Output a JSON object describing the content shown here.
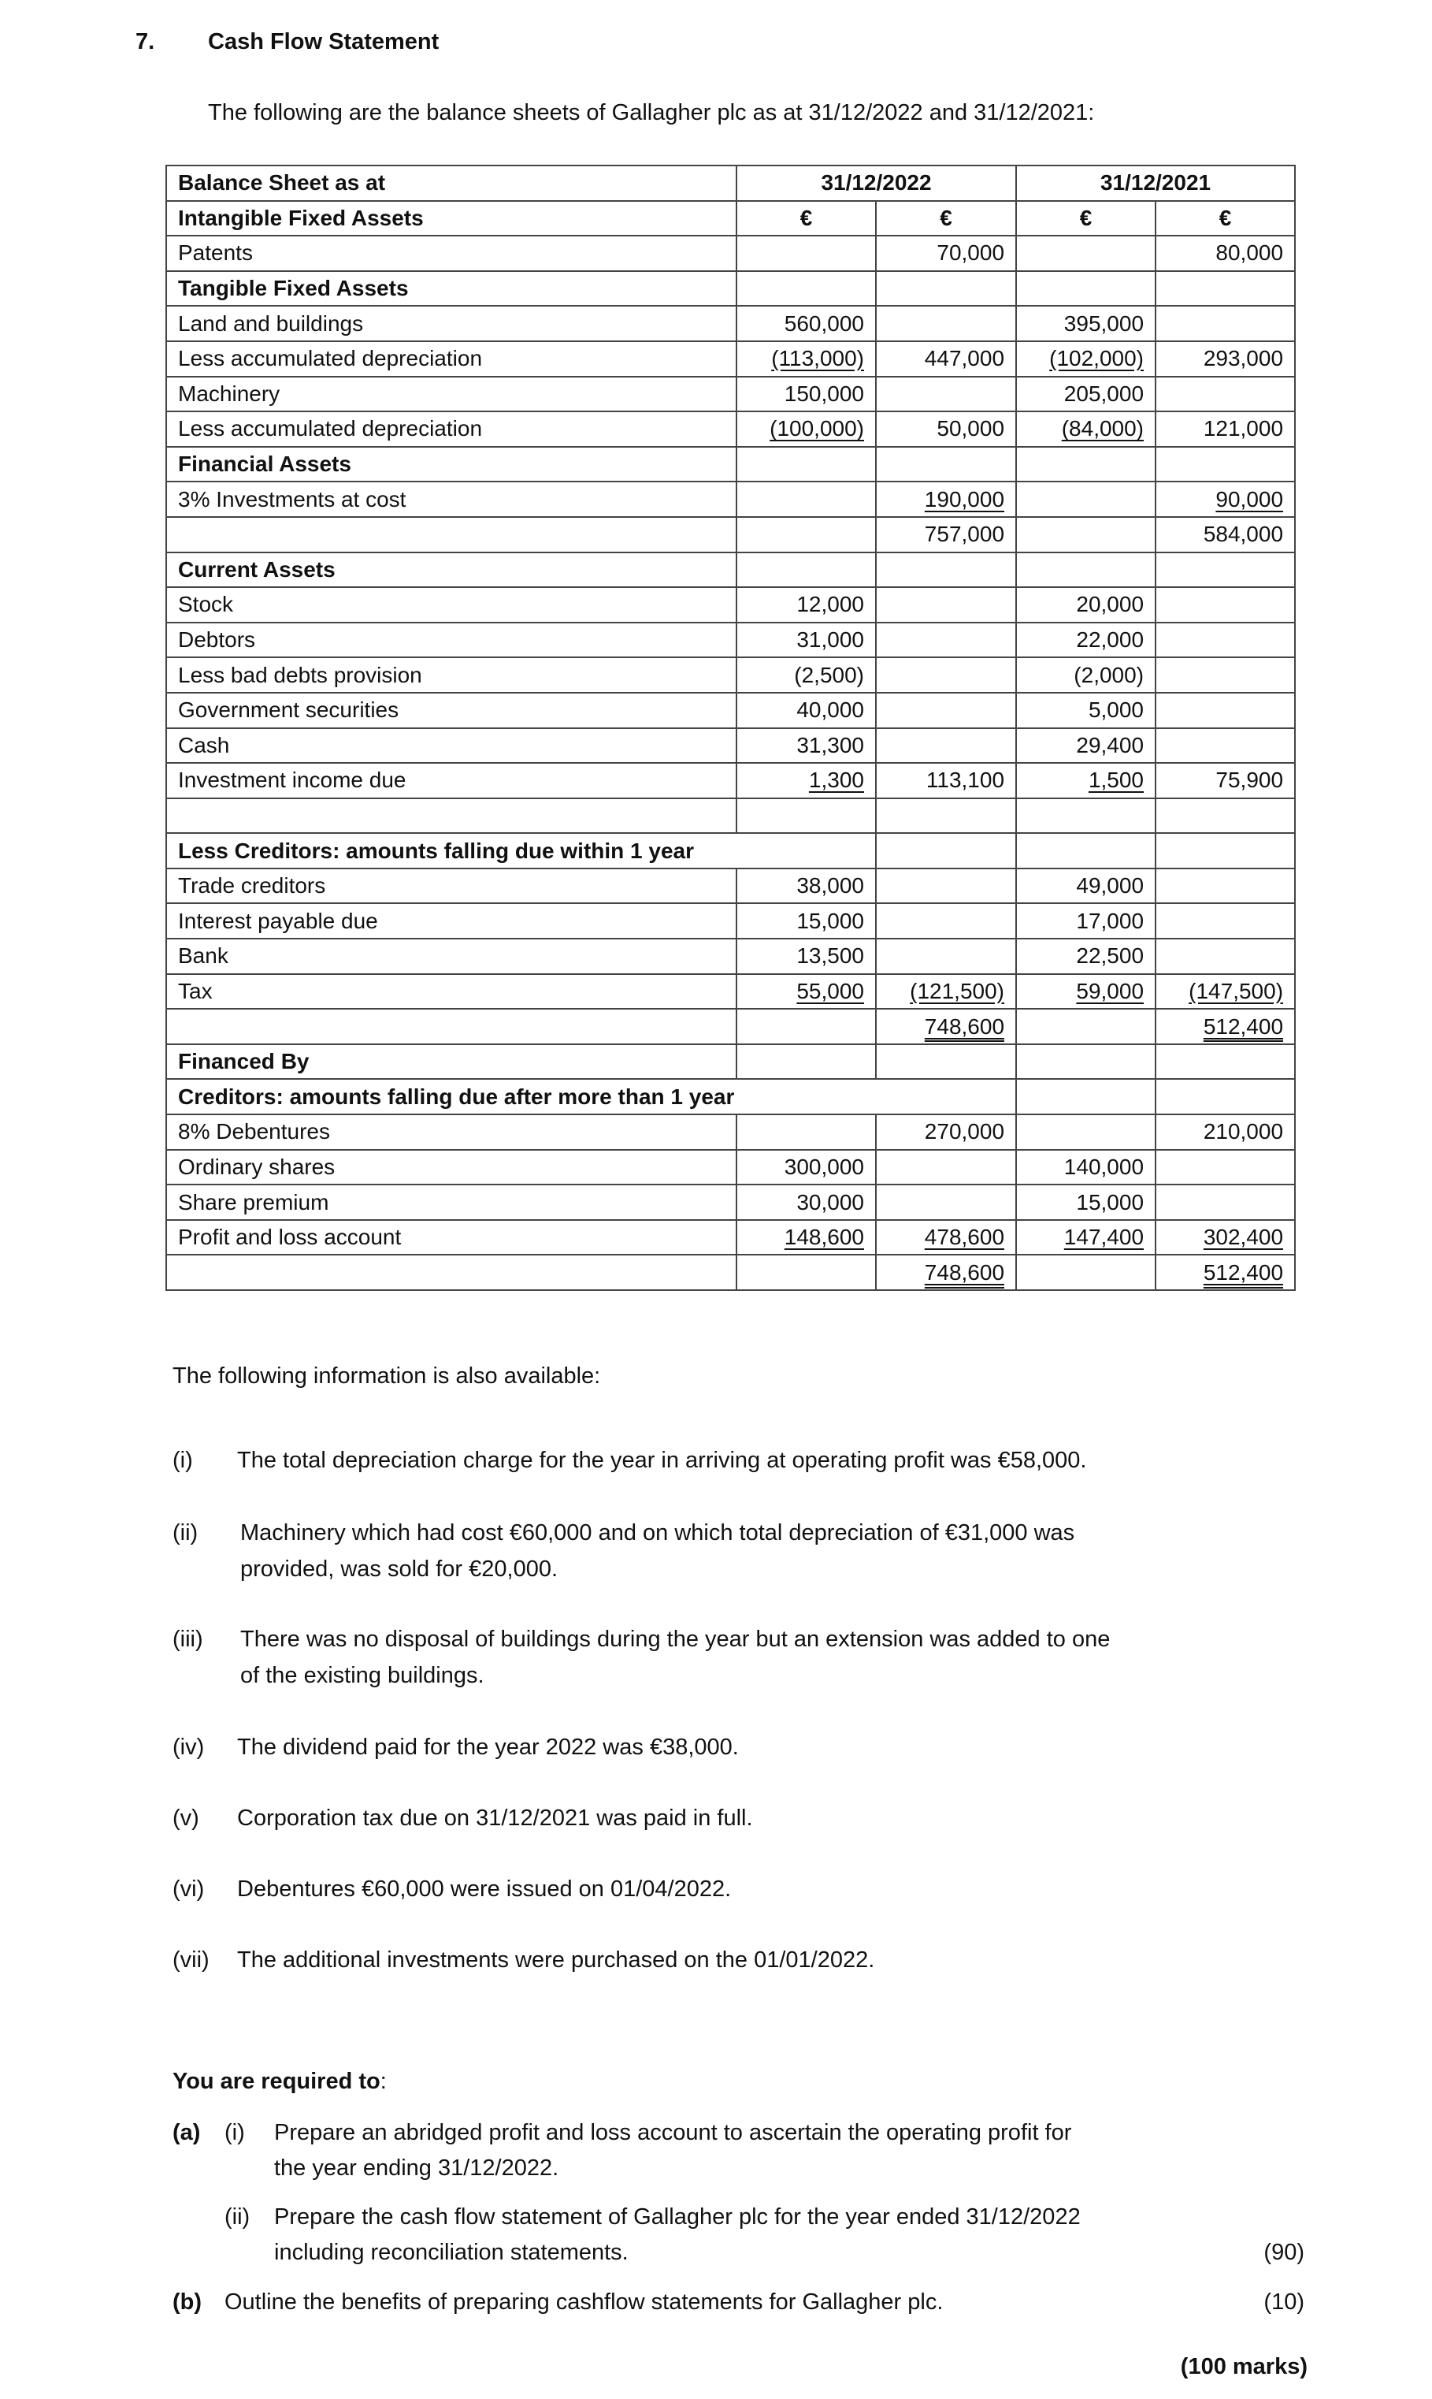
{
  "question": {
    "number": "7.",
    "title": "Cash Flow Statement",
    "intro": "The following are the balance sheets of Gallagher plc as at 31/12/2022 and 31/12/2021:"
  },
  "balance_sheet": {
    "rows": [
      {
        "kind": "header",
        "label": "Balance Sheet as at",
        "cells": [
          "31/12/2022",
          "31/12/2021"
        ]
      },
      {
        "kind": "currency",
        "label": "Intangible Fixed Assets",
        "cells": [
          "€",
          "€",
          "€",
          "€"
        ]
      },
      {
        "label": "Patents",
        "cells": [
          "",
          "70,000",
          "",
          "80,000"
        ]
      },
      {
        "kind": "section",
        "label": "Tangible Fixed Assets",
        "cells": [
          "",
          "",
          "",
          ""
        ]
      },
      {
        "label": "Land and buildings",
        "cells": [
          "560,000",
          "",
          "395,000",
          ""
        ]
      },
      {
        "label": "Less accumulated depreciation",
        "cells": [
          "(113,000)",
          "447,000",
          "(102,000)",
          "293,000"
        ],
        "underline": [
          "single",
          "",
          "single",
          ""
        ]
      },
      {
        "label": "Machinery",
        "cells": [
          "150,000",
          "",
          "205,000",
          ""
        ]
      },
      {
        "label": "Less accumulated depreciation",
        "cells": [
          "(100,000)",
          "50,000",
          "(84,000)",
          "121,000"
        ],
        "underline": [
          "single",
          "",
          "single",
          ""
        ]
      },
      {
        "kind": "section",
        "label": "Financial Assets",
        "cells": [
          "",
          "",
          "",
          ""
        ]
      },
      {
        "label": "3% Investments at cost",
        "cells": [
          "",
          "190,000",
          "",
          "90,000"
        ],
        "underline": [
          "",
          "single",
          "",
          "single"
        ]
      },
      {
        "label": "",
        "cells": [
          "",
          "757,000",
          "",
          "584,000"
        ]
      },
      {
        "kind": "section",
        "label": "Current Assets",
        "cells": [
          "",
          "",
          "",
          ""
        ]
      },
      {
        "label": "Stock",
        "cells": [
          "12,000",
          "",
          "20,000",
          ""
        ]
      },
      {
        "label": "Debtors",
        "cells": [
          "31,000",
          "",
          "22,000",
          ""
        ]
      },
      {
        "label": "Less bad debts provision",
        "cells": [
          "(2,500)",
          "",
          "(2,000)",
          ""
        ]
      },
      {
        "label": "Government securities",
        "cells": [
          "40,000",
          "",
          "5,000",
          ""
        ]
      },
      {
        "label": "Cash",
        "cells": [
          "31,300",
          "",
          "29,400",
          ""
        ]
      },
      {
        "label": "Investment income due",
        "cells": [
          "1,300",
          "113,100",
          "1,500",
          "75,900"
        ],
        "underline": [
          "single",
          "",
          "single",
          ""
        ]
      },
      {
        "label": "",
        "cells": [
          "",
          "",
          "",
          ""
        ]
      },
      {
        "kind": "wide2",
        "label": "Less Creditors: amounts falling due within 1 year",
        "cells": [
          "",
          "",
          ""
        ]
      },
      {
        "label": "Trade creditors",
        "cells": [
          "38,000",
          "",
          "49,000",
          ""
        ]
      },
      {
        "label": "Interest payable due",
        "cells": [
          "15,000",
          "",
          "17,000",
          ""
        ]
      },
      {
        "label": "Bank",
        "cells": [
          "13,500",
          "",
          "22,500",
          ""
        ]
      },
      {
        "label": "Tax",
        "cells": [
          "55,000",
          "(121,500)",
          "59,000",
          "(147,500)"
        ],
        "underline": [
          "single",
          "single",
          "single",
          "single"
        ]
      },
      {
        "label": "",
        "cells": [
          "",
          "748,600",
          "",
          "512,400"
        ],
        "underline": [
          "",
          "double",
          "",
          "double"
        ]
      },
      {
        "kind": "section",
        "label": "Financed By",
        "cells": [
          "",
          "",
          "",
          ""
        ]
      },
      {
        "kind": "wide3",
        "label": "Creditors: amounts falling due after more than 1 year",
        "cells": [
          "",
          ""
        ]
      },
      {
        "label": "8% Debentures",
        "cells": [
          "",
          "270,000",
          "",
          "210,000"
        ]
      },
      {
        "label": "Ordinary shares",
        "cells": [
          "300,000",
          "",
          "140,000",
          ""
        ]
      },
      {
        "label": "Share premium",
        "cells": [
          "30,000",
          "",
          "15,000",
          ""
        ]
      },
      {
        "label": "Profit and loss account",
        "cells": [
          "148,600",
          "478,600",
          "147,400",
          "302,400"
        ],
        "underline": [
          "single",
          "single",
          "single",
          "single"
        ]
      },
      {
        "label": "",
        "cells": [
          "",
          "748,600",
          "",
          "512,400"
        ],
        "underline": [
          "",
          "double",
          "",
          "double"
        ]
      }
    ]
  },
  "info": {
    "heading": "The following information is also available:",
    "items": [
      {
        "marker": "(i)",
        "lines": [
          "The total depreciation charge for the year in arriving at operating profit was €58,000."
        ]
      },
      {
        "marker": "(ii)",
        "lines": [
          "Machinery which had cost €60,000 and on which total depreciation of €31,000 was",
          "provided, was sold for €20,000."
        ]
      },
      {
        "marker": "(iii)",
        "lines": [
          "There was no disposal of buildings during the year but an extension was added to one",
          "of the existing buildings."
        ]
      },
      {
        "marker": "(iv)",
        "lines": [
          "The dividend paid for the year 2022 was €38,000."
        ]
      },
      {
        "marker": "(v)",
        "lines": [
          "Corporation tax due on 31/12/2021 was paid in full."
        ]
      },
      {
        "marker": "(vi)",
        "lines": [
          "Debentures €60,000 were issued on 01/04/2022."
        ]
      },
      {
        "marker": "(vii)",
        "lines": [
          "The additional investments were purchased on the 01/01/2022."
        ]
      }
    ]
  },
  "required": {
    "heading": "You are required to",
    "colon": ":",
    "a_label": "(a)",
    "a_i_marker": "(i)",
    "a_i_lines": [
      "Prepare an abridged profit and loss account to ascertain the operating profit for",
      "the year ending 31/12/2022."
    ],
    "a_ii_marker": "(ii)",
    "a_ii_lines": [
      "Prepare the cash flow statement of Gallagher plc for the year ended 31/12/2022",
      "including reconciliation statements."
    ],
    "a_marks": "(90)",
    "b_label": "(b)",
    "b_text": "Outline the benefits of preparing cashflow statements for Gallagher plc.",
    "b_marks": "(10)",
    "total_marks": "(100 marks)"
  }
}
